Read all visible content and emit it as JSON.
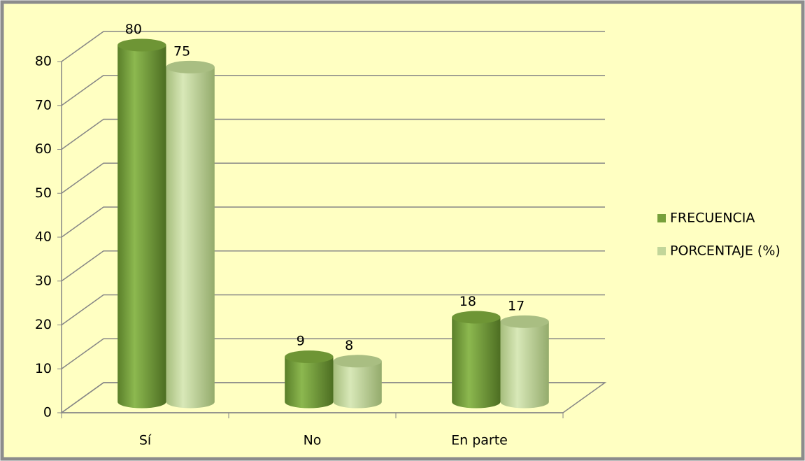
{
  "chart_data": {
    "type": "bar3d",
    "categories": [
      "Sí",
      "No",
      "En parte"
    ],
    "series": [
      {
        "name": "FRECUENCIA",
        "color": "#77a03b",
        "values": [
          80,
          9,
          18
        ]
      },
      {
        "name": "PORCENTAJE (%)",
        "color": "#c2d69a",
        "values": [
          75,
          8,
          17
        ]
      }
    ],
    "ylim": [
      0,
      80
    ],
    "yticks": [
      0,
      10,
      20,
      30,
      40,
      50,
      60,
      70,
      80
    ],
    "grid": true,
    "legend": "right"
  }
}
